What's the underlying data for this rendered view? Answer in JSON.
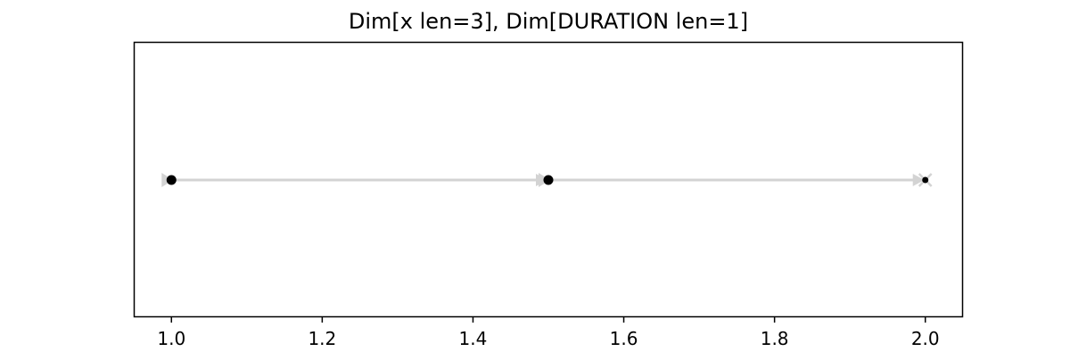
{
  "chart_data": {
    "type": "line",
    "title": "Dim[x len=3], Dim[DURATION len=1]",
    "xlabel": "",
    "ylabel": "",
    "xlim": [
      0.95,
      2.05
    ],
    "x_ticks": [
      "1.0",
      "1.2",
      "1.4",
      "1.6",
      "1.8",
      "2.0"
    ],
    "x_tick_values": [
      1.0,
      1.2,
      1.4,
      1.6,
      1.8,
      2.0
    ],
    "y_ticks": [],
    "grid": false,
    "points": [
      1.0,
      1.5,
      2.0
    ],
    "colors": {
      "line": "#d3d3d3",
      "points": "#000000",
      "frame": "#000000"
    }
  }
}
